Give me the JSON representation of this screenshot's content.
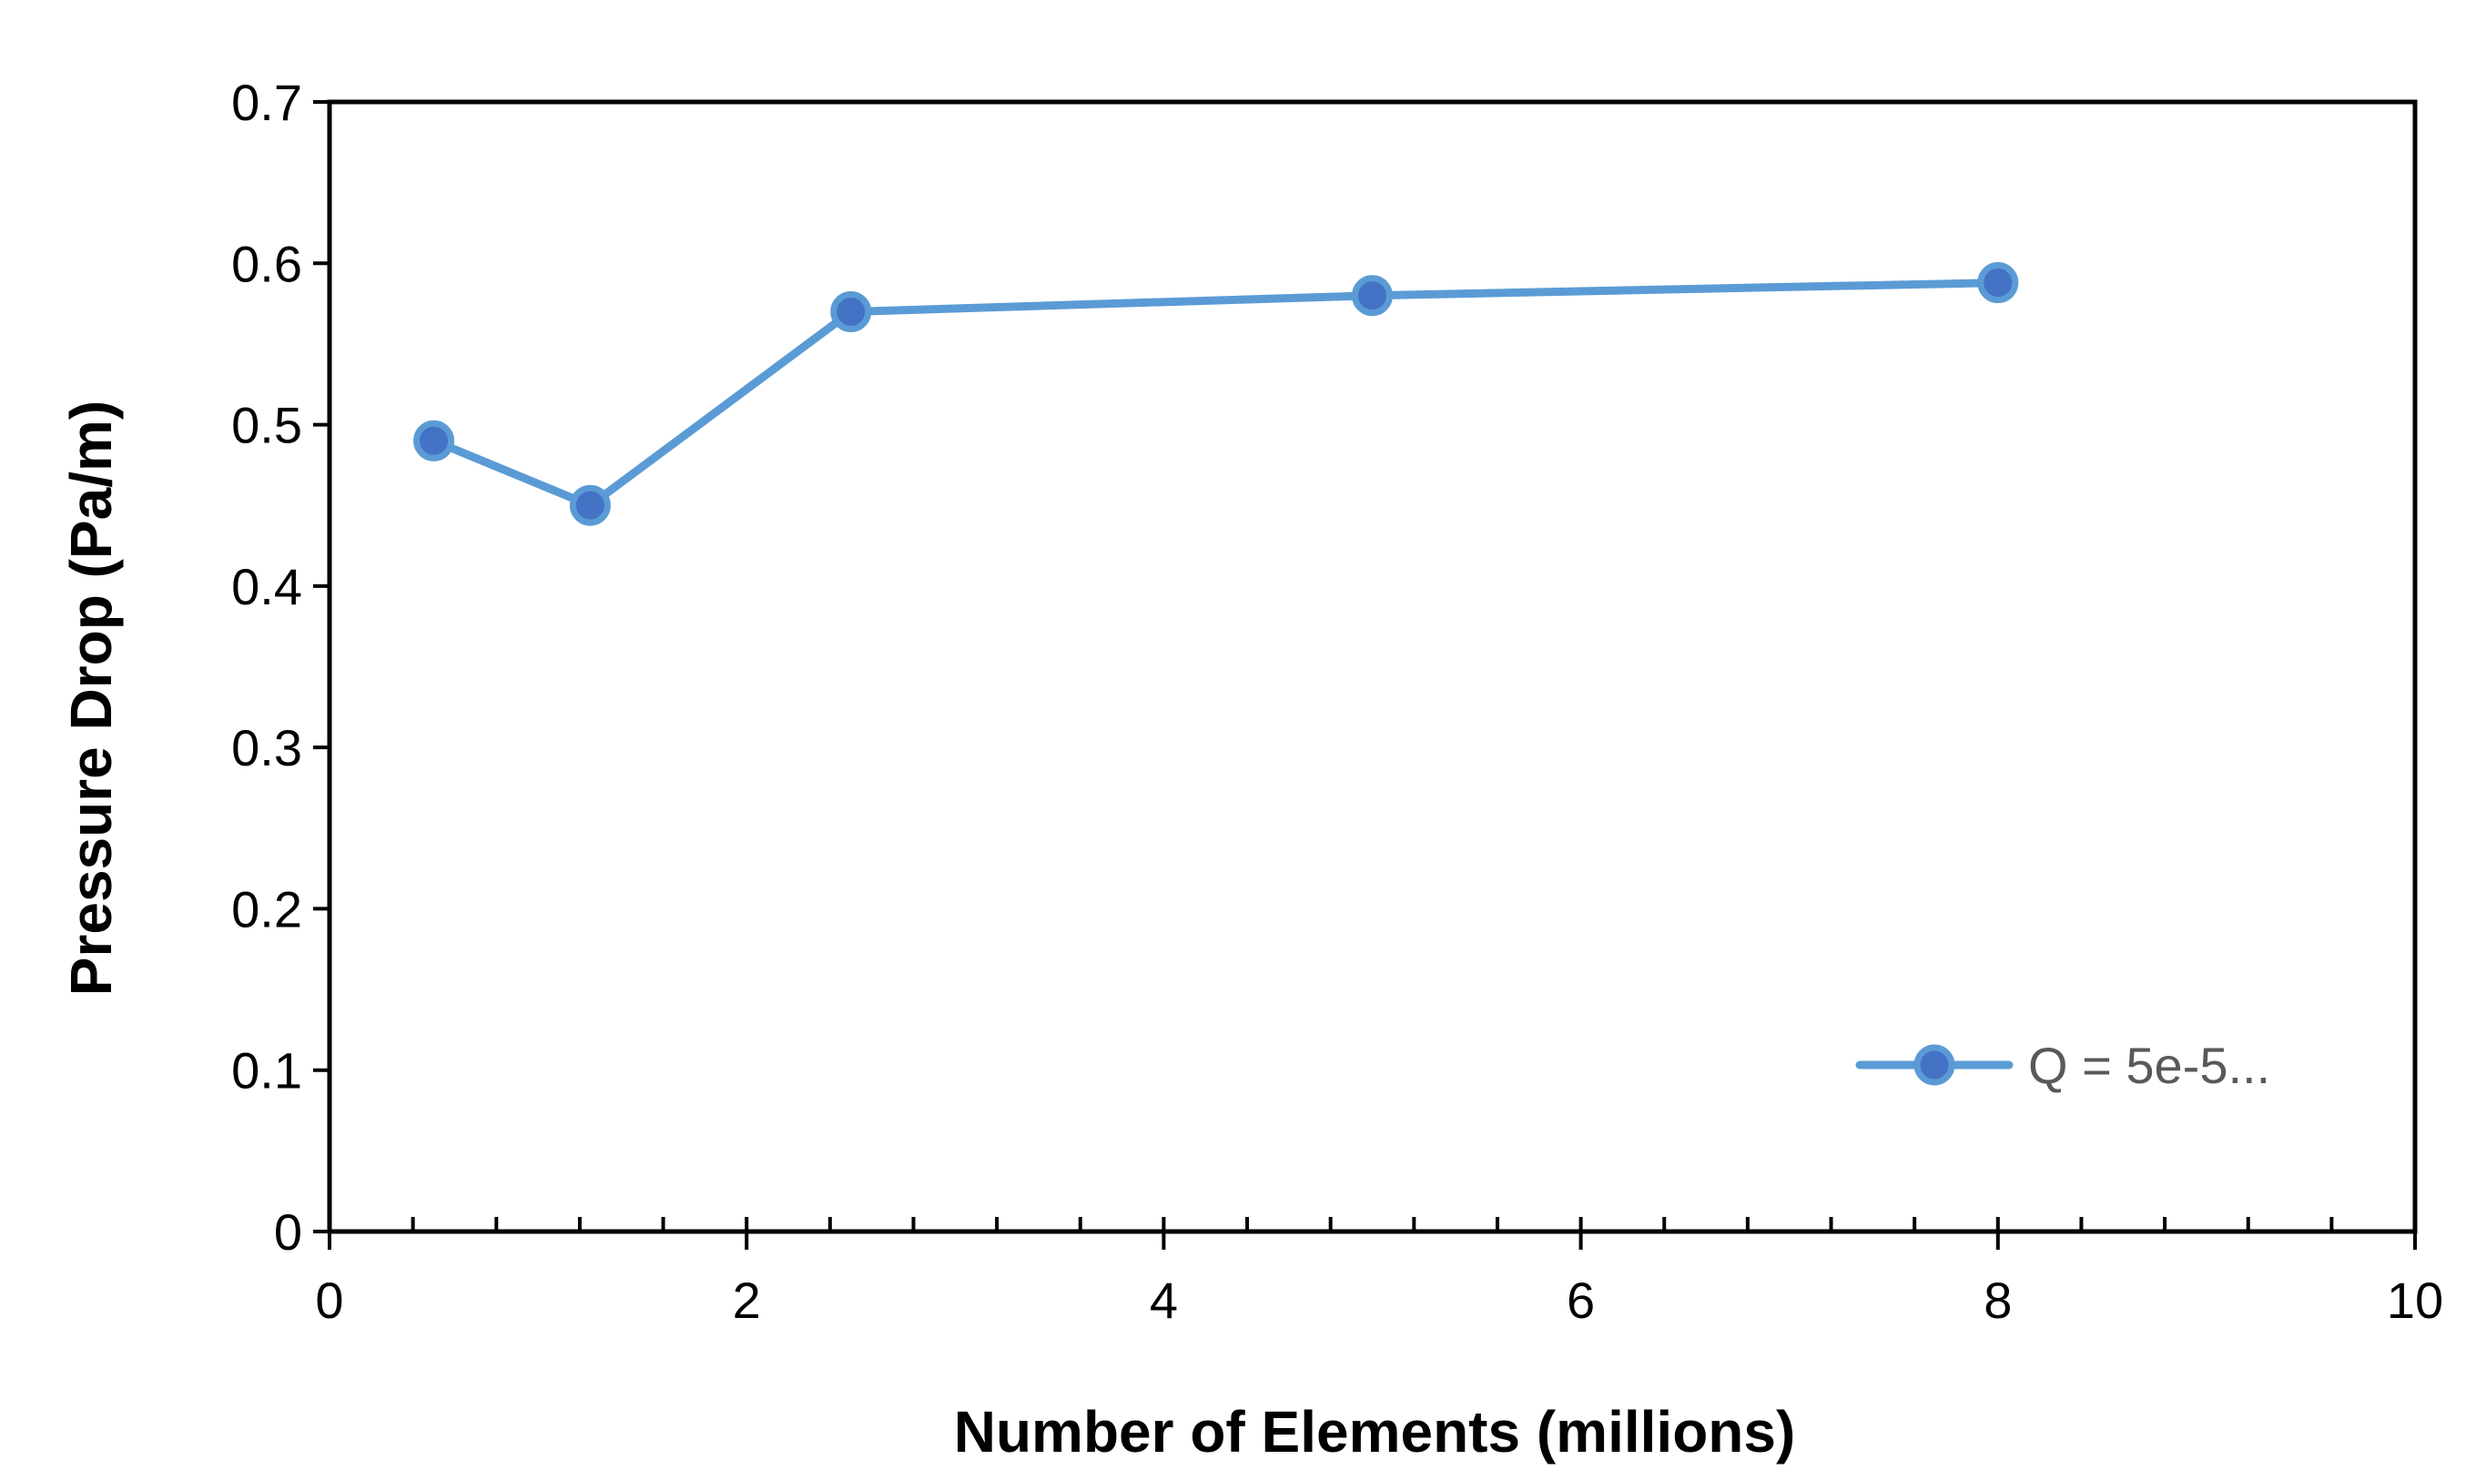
{
  "chart_data": {
    "type": "line",
    "title": "",
    "xlabel": "Number of Elements (millions)",
    "ylabel": "Pressure Drop (Pa/m)",
    "xlim": [
      0,
      10
    ],
    "ylim": [
      0,
      0.7
    ],
    "xticks": [
      "0",
      "2",
      "4",
      "6",
      "8",
      "10"
    ],
    "yticks": [
      "0",
      "0.1",
      "0.2",
      "0.3",
      "0.4",
      "0.5",
      "0.6",
      "0.7"
    ],
    "grid": false,
    "legend_position": "bottom-right",
    "series": [
      {
        "name": "Q = 5e-5...",
        "color": "#5B9BD5",
        "marker_color": "#4472C4",
        "x": [
          0.5,
          1.25,
          2.5,
          5,
          8
        ],
        "y": [
          0.49,
          0.45,
          0.57,
          0.58,
          0.588
        ]
      }
    ]
  }
}
